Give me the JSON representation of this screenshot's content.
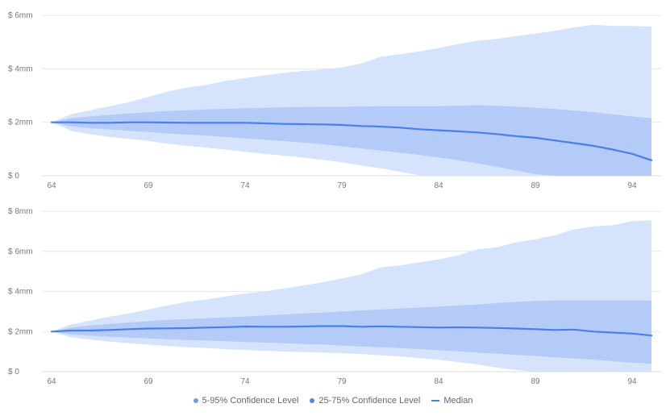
{
  "chart_data": [
    {
      "type": "area",
      "x": [
        64,
        65,
        66,
        67,
        68,
        69,
        70,
        71,
        72,
        73,
        74,
        75,
        76,
        77,
        78,
        79,
        80,
        81,
        82,
        83,
        84,
        85,
        86,
        87,
        88,
        89,
        90,
        91,
        92,
        93,
        94,
        95
      ],
      "x_ticks": [
        64,
        69,
        74,
        79,
        84,
        89,
        94
      ],
      "y_ticks": [
        0,
        2,
        4,
        6
      ],
      "y_tick_labels": [
        "$ 0",
        "$ 2mm",
        "$ 4mm",
        "$ 6mm"
      ],
      "ylim": [
        0,
        6
      ],
      "xlim": [
        63.5,
        95.5
      ],
      "grid": true,
      "series": [
        {
          "name": "5-95% Confidence Level",
          "upper": [
            2.0,
            2.3,
            2.45,
            2.6,
            2.75,
            2.95,
            3.15,
            3.3,
            3.4,
            3.55,
            3.65,
            3.75,
            3.85,
            3.92,
            3.98,
            4.05,
            4.2,
            4.45,
            4.55,
            4.65,
            4.78,
            4.92,
            5.05,
            5.12,
            5.22,
            5.32,
            5.42,
            5.55,
            5.65,
            5.6,
            5.6,
            5.58
          ],
          "lower": [
            2.0,
            1.68,
            1.55,
            1.45,
            1.38,
            1.3,
            1.2,
            1.12,
            1.05,
            0.98,
            0.9,
            0.82,
            0.75,
            0.68,
            0.6,
            0.5,
            0.38,
            0.28,
            0.15,
            0.02,
            -0.1,
            -0.2,
            -0.3,
            -0.4,
            -0.5,
            -0.6,
            -0.7,
            -0.8,
            -0.9,
            -0.95,
            -1.0,
            -1.05
          ]
        },
        {
          "name": "25-75% Confidence Level",
          "upper": [
            2.0,
            2.15,
            2.22,
            2.28,
            2.33,
            2.38,
            2.42,
            2.45,
            2.48,
            2.5,
            2.52,
            2.54,
            2.56,
            2.57,
            2.58,
            2.58,
            2.59,
            2.6,
            2.6,
            2.6,
            2.6,
            2.62,
            2.64,
            2.62,
            2.58,
            2.54,
            2.5,
            2.44,
            2.38,
            2.3,
            2.22,
            2.15
          ],
          "lower": [
            2.0,
            1.85,
            1.78,
            1.73,
            1.68,
            1.63,
            1.58,
            1.54,
            1.5,
            1.45,
            1.4,
            1.35,
            1.3,
            1.24,
            1.18,
            1.1,
            1.02,
            0.94,
            0.86,
            0.78,
            0.68,
            0.58,
            0.46,
            0.34,
            0.2,
            0.06,
            -0.08,
            -0.2,
            -0.32,
            -0.45,
            -0.58,
            -0.7
          ]
        },
        {
          "name": "Median",
          "values": [
            2.0,
            2.0,
            1.98,
            1.98,
            2.0,
            2.0,
            1.99,
            1.98,
            1.98,
            1.98,
            1.98,
            1.96,
            1.94,
            1.93,
            1.92,
            1.9,
            1.86,
            1.84,
            1.8,
            1.74,
            1.7,
            1.66,
            1.62,
            1.56,
            1.48,
            1.42,
            1.32,
            1.22,
            1.12,
            0.98,
            0.82,
            0.58
          ]
        }
      ]
    },
    {
      "type": "area",
      "x": [
        64,
        65,
        66,
        67,
        68,
        69,
        70,
        71,
        72,
        73,
        74,
        75,
        76,
        77,
        78,
        79,
        80,
        81,
        82,
        83,
        84,
        85,
        86,
        87,
        88,
        89,
        90,
        91,
        92,
        93,
        94,
        95
      ],
      "x_ticks": [
        64,
        69,
        74,
        79,
        84,
        89,
        94
      ],
      "y_ticks": [
        0,
        2,
        4,
        6,
        8
      ],
      "y_tick_labels": [
        "$ 0",
        "$ 2mm",
        "$ 4mm",
        "$ 6mm",
        "$ 8mm"
      ],
      "ylim": [
        0,
        8
      ],
      "xlim": [
        63.5,
        95.5
      ],
      "grid": true,
      "series": [
        {
          "name": "5-95% Confidence Level",
          "upper": [
            2.0,
            2.35,
            2.55,
            2.75,
            2.9,
            3.1,
            3.3,
            3.48,
            3.6,
            3.75,
            3.9,
            4.0,
            4.15,
            4.3,
            4.45,
            4.65,
            4.85,
            5.2,
            5.3,
            5.45,
            5.6,
            5.8,
            6.1,
            6.2,
            6.45,
            6.6,
            6.8,
            7.1,
            7.25,
            7.3,
            7.5,
            7.55
          ],
          "lower": [
            2.0,
            1.72,
            1.6,
            1.5,
            1.42,
            1.35,
            1.28,
            1.22,
            1.18,
            1.12,
            1.08,
            1.04,
            1.0,
            0.98,
            0.95,
            0.92,
            0.88,
            0.82,
            0.76,
            0.68,
            0.6,
            0.48,
            0.36,
            0.2,
            0.08,
            -0.05,
            -0.2,
            -0.35,
            -0.5,
            -0.65,
            -0.8,
            -0.95
          ]
        },
        {
          "name": "25-75% Confidence Level",
          "upper": [
            2.0,
            2.2,
            2.3,
            2.38,
            2.45,
            2.52,
            2.58,
            2.62,
            2.66,
            2.7,
            2.75,
            2.8,
            2.85,
            2.9,
            2.95,
            3.0,
            3.05,
            3.1,
            3.15,
            3.2,
            3.25,
            3.3,
            3.35,
            3.42,
            3.48,
            3.52,
            3.55,
            3.55,
            3.55,
            3.55,
            3.55,
            3.55
          ],
          "lower": [
            2.0,
            1.85,
            1.8,
            1.74,
            1.7,
            1.66,
            1.62,
            1.58,
            1.55,
            1.52,
            1.48,
            1.45,
            1.42,
            1.38,
            1.35,
            1.3,
            1.26,
            1.22,
            1.18,
            1.12,
            1.07,
            1.01,
            0.95,
            0.9,
            0.84,
            0.78,
            0.72,
            0.66,
            0.6,
            0.52,
            0.45,
            0.4
          ]
        },
        {
          "name": "Median",
          "values": [
            2.0,
            2.05,
            2.05,
            2.08,
            2.12,
            2.15,
            2.16,
            2.17,
            2.2,
            2.22,
            2.25,
            2.24,
            2.24,
            2.25,
            2.27,
            2.27,
            2.24,
            2.26,
            2.24,
            2.22,
            2.2,
            2.21,
            2.2,
            2.18,
            2.15,
            2.12,
            2.08,
            2.1,
            2.0,
            1.95,
            1.9,
            1.8
          ]
        }
      ]
    }
  ],
  "legend": {
    "items": [
      {
        "label": "5-95% Confidence Level",
        "color": "#a7c0f5",
        "marker": "dot"
      },
      {
        "label": "25-75% Confidence Level",
        "color": "#5c8fef",
        "marker": "dot"
      },
      {
        "label": "Median",
        "color": "#4a7fe9",
        "marker": "line"
      }
    ]
  },
  "colors": {
    "outer_band": "#d6e3fc",
    "inner_band": "#b4cbf7",
    "median": "#4a7fe9",
    "grid": "#e8e8e8",
    "tick_text": "#777777"
  }
}
